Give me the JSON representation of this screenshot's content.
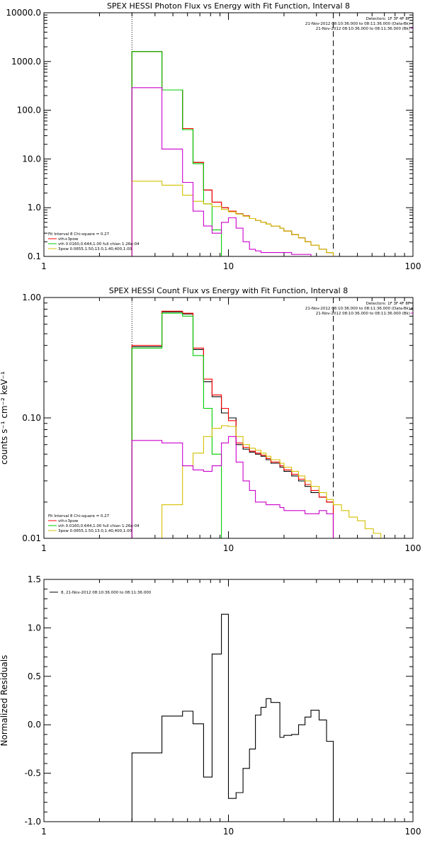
{
  "chart_data": [
    {
      "type": "line",
      "title": "SPEX HESSI Photon Flux vs Energy with Fit Function, Interval 8",
      "xlabel": "",
      "ylabel": "",
      "xscale": "log",
      "yscale": "log",
      "xlim": [
        1,
        100
      ],
      "ylim": [
        0.1,
        10000
      ],
      "xticks": [
        {
          "v": 1,
          "t": "1"
        },
        {
          "v": 10,
          "t": "10"
        },
        {
          "v": 100,
          "t": "100"
        }
      ],
      "yticks": [
        {
          "v": 0.1,
          "t": "0.1"
        },
        {
          "v": 1,
          "t": "1.0"
        },
        {
          "v": 10,
          "t": "10.0"
        },
        {
          "v": 100,
          "t": "100.0"
        },
        {
          "v": 1000,
          "t": "1000.0"
        },
        {
          "v": 10000,
          "t": "10000.0"
        }
      ],
      "vlines": [
        {
          "x": 3.0,
          "style": "dotted"
        },
        {
          "x": 37.0,
          "style": "dashed"
        }
      ],
      "legend_top_right": {
        "lines": [
          {
            "text": "Detectors: 1F 3F 4F 8F",
            "color": "#000000"
          },
          {
            "text": "21-Nov-2012 08:10:36.000 to 08:11:36.000 (Data-Bk)",
            "color": "#000000"
          },
          {
            "text": "21-Nov-2012 08:10:36.000 to 08:11:36.000 (Bk)",
            "color": "#cc00cc"
          }
        ]
      },
      "legend_bottom_left": {
        "header": "Fit Interval 8   Chi-square = 0.27",
        "entries": [
          {
            "text": "vth+3pow",
            "color": "#ff0000"
          },
          {
            "text": "vth 0.0160,0.644,1.00  full chian 1.26e-04",
            "color": "#00cc00"
          },
          {
            "text": "3pow 0.0655,1.50,13.0,1.40,400,1.00",
            "color": "#d4c000"
          }
        ]
      },
      "series": [
        {
          "color": "#000000",
          "edges": [
            3,
            4.36,
            5.64,
            6.43,
            7.33,
            8.15,
            9.16,
            10,
            11,
            12,
            13,
            14,
            15,
            16,
            17,
            19,
            20,
            22,
            24,
            26,
            28,
            31,
            34,
            37
          ],
          "values": [
            1600,
            260,
            40,
            8.5,
            2.3,
            1.3,
            1.0,
            0.85,
            0.75,
            0.68,
            0.6,
            0.55,
            0.5,
            0.46,
            0.42,
            0.38,
            0.33,
            0.28,
            0.24,
            0.2,
            0.17,
            0.14,
            0.12
          ]
        },
        {
          "color": "#ff0000",
          "edges": [
            3,
            4.36,
            5.64,
            6.43,
            7.33,
            8.15,
            9.16,
            10,
            11,
            12,
            13,
            14,
            15,
            16,
            17,
            19,
            20,
            22,
            24,
            26,
            28,
            31,
            34,
            37
          ],
          "values": [
            1600,
            260,
            42,
            8.5,
            2.3,
            1.3,
            1.0,
            0.85,
            0.75,
            0.68,
            0.6,
            0.55,
            0.5,
            0.46,
            0.42,
            0.38,
            0.33,
            0.28,
            0.24,
            0.2,
            0.17,
            0.14,
            0.12
          ]
        },
        {
          "color": "#00cc00",
          "edges": [
            3,
            4.36,
            5.64,
            6.43,
            7.33,
            8.15,
            9.16
          ],
          "values": [
            1600,
            260,
            40,
            8.0,
            1.2,
            0.35
          ]
        },
        {
          "color": "#d4c000",
          "edges": [
            3,
            4.36,
            5.64,
            6.43,
            7.33,
            8.15,
            9.16,
            10,
            11,
            12,
            13,
            14,
            15,
            16,
            17,
            19,
            20,
            22,
            24,
            26,
            28,
            31,
            34,
            37,
            41
          ],
          "values": [
            3.5,
            2.9,
            1.8,
            1.35,
            1.2,
            1.05,
            0.92,
            0.82,
            0.74,
            0.67,
            0.6,
            0.55,
            0.5,
            0.46,
            0.42,
            0.38,
            0.33,
            0.28,
            0.24,
            0.2,
            0.17,
            0.14,
            0.12,
            0.1
          ]
        },
        {
          "color": "#cc00cc",
          "edges": [
            3,
            4.36,
            5.64,
            6.43,
            7.33,
            8.15,
            9.16,
            10,
            11,
            12,
            13,
            14,
            15,
            16,
            17,
            19,
            20,
            22,
            24,
            26,
            28,
            31,
            34,
            37
          ],
          "values": [
            290,
            16,
            3.3,
            0.85,
            0.42,
            0.3,
            0.5,
            0.62,
            0.38,
            0.2,
            0.14,
            0.13,
            0.12,
            0.12,
            0.12,
            0.12,
            0.12,
            0.11,
            0.11,
            0.11,
            0.1,
            0.1,
            0.1
          ]
        }
      ]
    },
    {
      "type": "line",
      "title": "SPEX HESSI Count Flux vs Energy with Fit Function, Interval 8",
      "xlabel": "",
      "ylabel": "counts s⁻¹ cm⁻² keV⁻¹",
      "xscale": "log",
      "yscale": "log",
      "xlim": [
        1,
        100
      ],
      "ylim": [
        0.01,
        1
      ],
      "xticks": [
        {
          "v": 1,
          "t": "1"
        },
        {
          "v": 10,
          "t": "10"
        },
        {
          "v": 100,
          "t": "100"
        }
      ],
      "yticks": [
        {
          "v": 0.01,
          "t": "0.01"
        },
        {
          "v": 0.1,
          "t": "0.10"
        },
        {
          "v": 1,
          "t": "1.00"
        }
      ],
      "vlines": [
        {
          "x": 3.0,
          "style": "dotted"
        },
        {
          "x": 37.0,
          "style": "dashed"
        }
      ],
      "legend_top_right": {
        "lines": [
          {
            "text": "Detectors: 1F 3F 4F 8F",
            "color": "#000000"
          },
          {
            "text": "21-Nov-2012 08:10:36.000 to 08:11:36.000 (Data-Bk)",
            "color": "#000000"
          },
          {
            "text": "21-Nov-2012 08:10:36.000 to 08:11:36.000 (Bk)",
            "color": "#cc00cc"
          }
        ]
      },
      "legend_bottom_left": {
        "header": "Fit Interval 8   Chi-square = 0.27",
        "entries": [
          {
            "text": "vth+3pow",
            "color": "#ff0000"
          },
          {
            "text": "vth 0.0160,0.644,1.00  full chian 1.26e-04",
            "color": "#00cc00"
          },
          {
            "text": "3pow 0.0655,1.50,13.0,1.40,400,1.00",
            "color": "#d4c000"
          }
        ]
      },
      "series": [
        {
          "color": "#000000",
          "edges": [
            3,
            4.36,
            5.64,
            6.43,
            7.33,
            8.15,
            9.16,
            10,
            11,
            12,
            13,
            14,
            15,
            16,
            17,
            19,
            20,
            22,
            24,
            26,
            28,
            31,
            34,
            37
          ],
          "values": [
            0.39,
            0.76,
            0.73,
            0.37,
            0.2,
            0.15,
            0.11,
            0.1,
            0.06,
            0.055,
            0.052,
            0.05,
            0.048,
            0.045,
            0.042,
            0.039,
            0.036,
            0.033,
            0.03,
            0.027,
            0.024,
            0.022,
            0.02
          ]
        },
        {
          "color": "#ff0000",
          "edges": [
            3,
            4.36,
            5.64,
            6.43,
            7.33,
            8.15,
            9.16,
            10,
            11,
            12,
            13,
            14,
            15,
            16,
            17,
            19,
            20,
            22,
            24,
            26,
            28,
            31,
            34,
            37
          ],
          "values": [
            0.4,
            0.77,
            0.74,
            0.38,
            0.21,
            0.155,
            0.12,
            0.095,
            0.062,
            0.057,
            0.053,
            0.051,
            0.049,
            0.046,
            0.043,
            0.04,
            0.037,
            0.034,
            0.031,
            0.028,
            0.025,
            0.022,
            0.02
          ]
        },
        {
          "color": "#00cc00",
          "edges": [
            3,
            4.36,
            5.64,
            6.43,
            7.33,
            8.15,
            9.16
          ],
          "values": [
            0.38,
            0.74,
            0.7,
            0.33,
            0.12,
            0.05
          ]
        },
        {
          "color": "#d4c000",
          "edges": [
            4.36,
            5.64,
            6.43,
            7.33,
            8.15,
            9.16,
            10,
            11,
            12,
            13,
            14,
            15,
            16,
            17,
            19,
            20,
            22,
            24,
            26,
            28,
            31,
            34,
            37,
            41,
            45,
            50,
            55,
            61,
            67,
            74
          ],
          "values": [
            0.019,
            0.04,
            0.051,
            0.07,
            0.082,
            0.086,
            0.085,
            0.07,
            0.06,
            0.056,
            0.054,
            0.051,
            0.048,
            0.045,
            0.042,
            0.039,
            0.036,
            0.033,
            0.03,
            0.027,
            0.024,
            0.021,
            0.019,
            0.017,
            0.015,
            0.014,
            0.012,
            0.011,
            0.01
          ]
        },
        {
          "color": "#cc00cc",
          "edges": [
            3,
            4.36,
            5.64,
            6.43,
            7.33,
            8.15,
            9.16,
            10,
            11,
            12,
            13,
            14,
            15,
            16,
            17,
            19,
            20,
            22,
            24,
            26,
            28,
            31,
            34,
            37
          ],
          "values": [
            0.065,
            0.062,
            0.04,
            0.037,
            0.036,
            0.04,
            0.062,
            0.07,
            0.043,
            0.03,
            0.025,
            0.02,
            0.02,
            0.019,
            0.019,
            0.018,
            0.017,
            0.017,
            0.017,
            0.016,
            0.016,
            0.017,
            0.016
          ]
        }
      ]
    },
    {
      "type": "line",
      "title": "",
      "xlabel": "",
      "ylabel": "Normalized Residuals",
      "xscale": "log",
      "yscale": "linear",
      "xlim": [
        1,
        100
      ],
      "ylim": [
        -1.0,
        1.5
      ],
      "xticks": [
        {
          "v": 1,
          "t": "1"
        },
        {
          "v": 10,
          "t": "10"
        },
        {
          "v": 100,
          "t": "100"
        }
      ],
      "yticks": [
        {
          "v": -1.0,
          "t": "-1.0"
        },
        {
          "v": -0.5,
          "t": "-0.5"
        },
        {
          "v": 0.0,
          "t": "0.0"
        },
        {
          "v": 0.5,
          "t": "0.5"
        },
        {
          "v": 1.0,
          "t": "1.0"
        },
        {
          "v": 1.5,
          "t": "1.5"
        }
      ],
      "legend": {
        "text": "8, 21-Nov-2012 08:10:36.000 to 08:11:36.000",
        "color": "#000000"
      },
      "series": [
        {
          "color": "#000000",
          "edges": [
            3,
            4.36,
            5.64,
            6.43,
            7.33,
            8.15,
            9.16,
            10,
            11,
            12,
            13,
            14,
            15,
            16,
            17,
            19,
            20,
            22,
            24,
            26,
            28,
            31,
            34,
            37
          ],
          "values": [
            -0.29,
            0.09,
            0.14,
            0.01,
            -0.54,
            0.73,
            1.14,
            -0.76,
            -0.7,
            -0.45,
            -0.25,
            0.1,
            0.18,
            0.27,
            0.23,
            -0.13,
            -0.11,
            -0.1,
            0.0,
            0.08,
            0.15,
            0.05,
            -0.17
          ]
        }
      ]
    }
  ]
}
